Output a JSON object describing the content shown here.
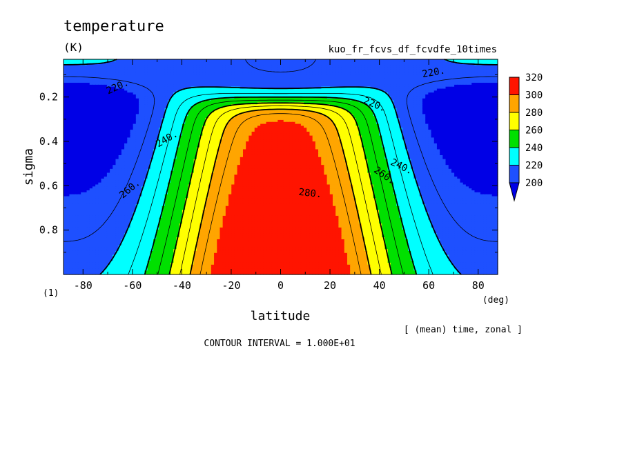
{
  "chart_data": {
    "type": "heatmap",
    "title": "temperature",
    "units": "(K)",
    "subtitle": "kuo_fr_fcvs_df_fcvdfe_10times",
    "xlabel": "latitude",
    "xunits": "(deg)",
    "ylabel": "sigma",
    "yunits": "(1)",
    "xlim": [
      -87.9,
      87.9
    ],
    "ylim": [
      0.03,
      1.0
    ],
    "y_reversed": true,
    "x_ticks": [
      -80,
      -60,
      -40,
      -20,
      0,
      20,
      40,
      60,
      80
    ],
    "y_ticks": [
      0.2,
      0.4,
      0.6,
      0.8
    ],
    "x_tick_labels": [
      "-80",
      "-60",
      "-40",
      "-20",
      "0",
      "20",
      "40",
      "60",
      "80"
    ],
    "y_tick_labels": [
      "0.2",
      "0.4",
      "0.6",
      "0.8"
    ],
    "levels": [
      200,
      220,
      240,
      260,
      280,
      300,
      320
    ],
    "level_labels": [
      "200",
      "220",
      "240",
      "260",
      "280",
      "300",
      "320"
    ],
    "colors": [
      "#1e50ff",
      "#00ffff",
      "#00e000",
      "#ffff00",
      "#ffa500",
      "#ff1400"
    ],
    "below_min_color": "#0000e6",
    "contour_labels": [
      "220.",
      "220.",
      "220.",
      "240.",
      "240.",
      "260.",
      "260.",
      "280."
    ],
    "footer_note": "[ (mean) time, zonal ]",
    "contour_interval": "CONTOUR INTERVAL = 1.000E+01"
  }
}
